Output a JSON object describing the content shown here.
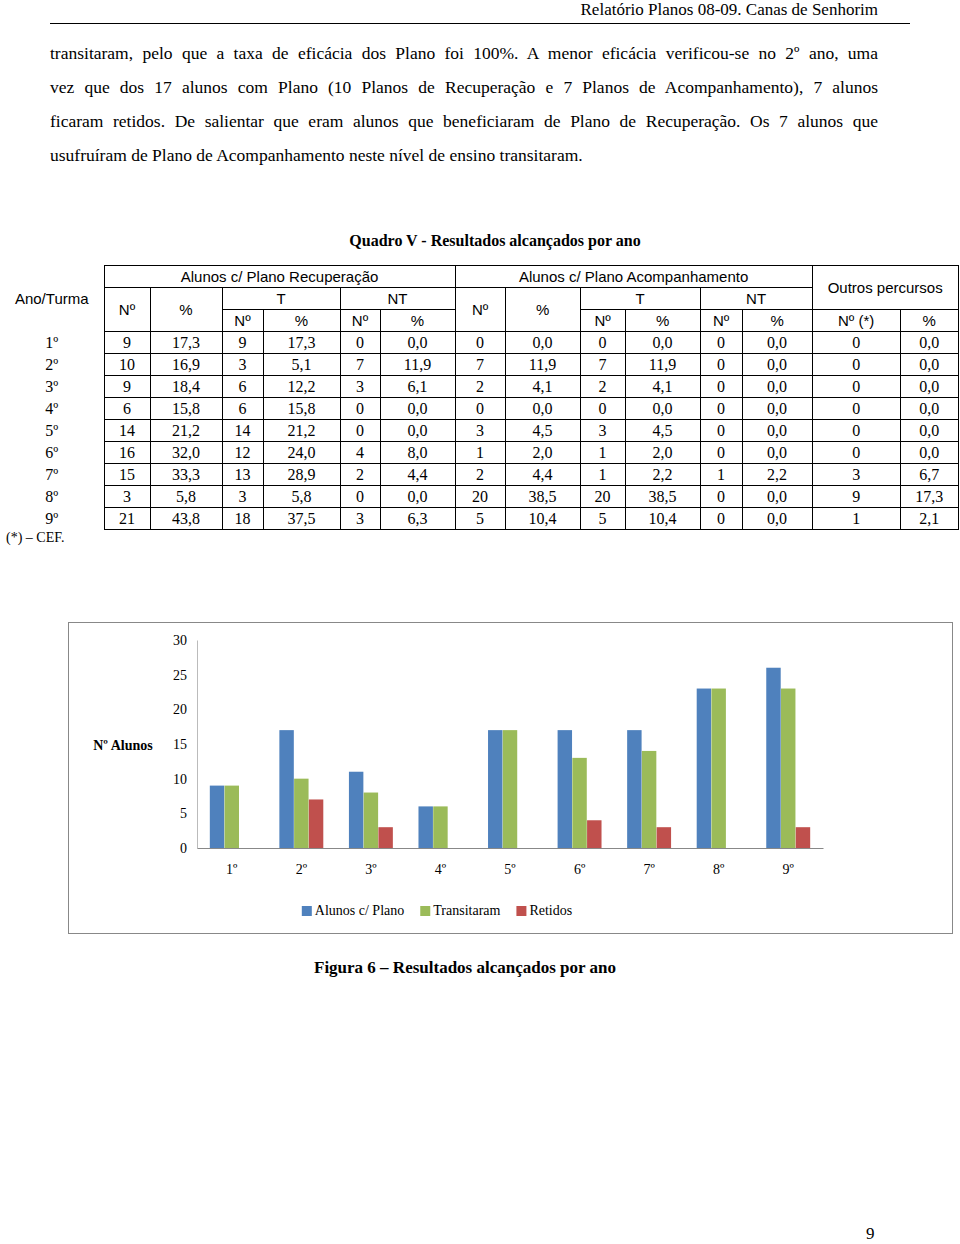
{
  "header": {
    "title": "Relatório Planos 08-09. Canas de Senhorim"
  },
  "paragraph": {
    "lines": [
      "transitaram, pelo que a taxa de eficácia dos Plano foi 100%. A menor eficácia verificou-se no 2º ano, uma",
      "vez que dos 17 alunos com Plano (10 Planos de Recuperação e 7 Planos de Acompanhamento), 7 alunos",
      "ficaram retidos. De salientar que eram alunos que beneficiaram de Plano de Recuperação. Os 7 alunos que",
      "usufruíram de Plano de Acompanhamento neste nível de ensino transitaram."
    ]
  },
  "table": {
    "title": "Quadro V - Resultados alcançados por ano",
    "row_header": "Ano/Turma",
    "group_headers": [
      "Alunos c/ Plano Recuperação",
      "Alunos c/ Plano Acompanhamento",
      "Outros percursos"
    ],
    "sub_headers": [
      "Nº",
      "%",
      "T",
      "NT",
      "Nº",
      "%",
      "T",
      "NT"
    ],
    "leaf_headers": [
      "Nº",
      "%",
      "Nº",
      "%",
      "Nº",
      "%",
      "Nº",
      "%",
      "Nº (*)",
      "%"
    ],
    "rows": [
      [
        "1º",
        "9",
        "17,3",
        "9",
        "17,3",
        "0",
        "0,0",
        "0",
        "0,0",
        "0",
        "0,0",
        "0",
        "0,0",
        "0",
        "0,0"
      ],
      [
        "2º",
        "10",
        "16,9",
        "3",
        "5,1",
        "7",
        "11,9",
        "7",
        "11,9",
        "7",
        "11,9",
        "0",
        "0,0",
        "0",
        "0,0"
      ],
      [
        "3º",
        "9",
        "18,4",
        "6",
        "12,2",
        "3",
        "6,1",
        "2",
        "4,1",
        "2",
        "4,1",
        "0",
        "0,0",
        "0",
        "0,0"
      ],
      [
        "4º",
        "6",
        "15,8",
        "6",
        "15,8",
        "0",
        "0,0",
        "0",
        "0,0",
        "0",
        "0,0",
        "0",
        "0,0",
        "0",
        "0,0"
      ],
      [
        "5º",
        "14",
        "21,2",
        "14",
        "21,2",
        "0",
        "0,0",
        "3",
        "4,5",
        "3",
        "4,5",
        "0",
        "0,0",
        "0",
        "0,0"
      ],
      [
        "6º",
        "16",
        "32,0",
        "12",
        "24,0",
        "4",
        "8,0",
        "1",
        "2,0",
        "1",
        "2,0",
        "0",
        "0,0",
        "0",
        "0,0"
      ],
      [
        "7º",
        "15",
        "33,3",
        "13",
        "28,9",
        "2",
        "4,4",
        "2",
        "4,4",
        "1",
        "2,2",
        "1",
        "2,2",
        "3",
        "6,7"
      ],
      [
        "8º",
        "3",
        "5,8",
        "3",
        "5,8",
        "0",
        "0,0",
        "20",
        "38,5",
        "20",
        "38,5",
        "0",
        "0,0",
        "9",
        "17,3"
      ],
      [
        "9º",
        "21",
        "43,8",
        "18",
        "37,5",
        "3",
        "6,3",
        "5",
        "10,4",
        "5",
        "10,4",
        "0",
        "0,0",
        "1",
        "2,1"
      ]
    ],
    "footnote": "(*) – CEF."
  },
  "chart_data": {
    "type": "bar",
    "y_label": "Nº Alunos",
    "categories": [
      "1º",
      "2º",
      "3º",
      "4º",
      "5º",
      "6º",
      "7º",
      "8º",
      "9º"
    ],
    "series": [
      {
        "name": "Alunos c/ Plano",
        "color": "#4f81bd",
        "values": [
          9,
          17,
          11,
          6,
          17,
          17,
          17,
          23,
          26
        ]
      },
      {
        "name": "Transitaram",
        "color": "#9bbb59",
        "values": [
          9,
          10,
          8,
          6,
          17,
          13,
          14,
          23,
          23
        ]
      },
      {
        "name": "Retidos",
        "color": "#c0504d",
        "values": [
          0,
          7,
          3,
          0,
          0,
          4,
          3,
          0,
          3
        ]
      }
    ],
    "ylim": [
      0,
      30
    ],
    "yticks": [
      0,
      5,
      10,
      15,
      20,
      25,
      30
    ],
    "grid": false,
    "legend": "bottom"
  },
  "figure_caption": "Figura 6 – Resultados alcançados por ano",
  "page_number": "9"
}
